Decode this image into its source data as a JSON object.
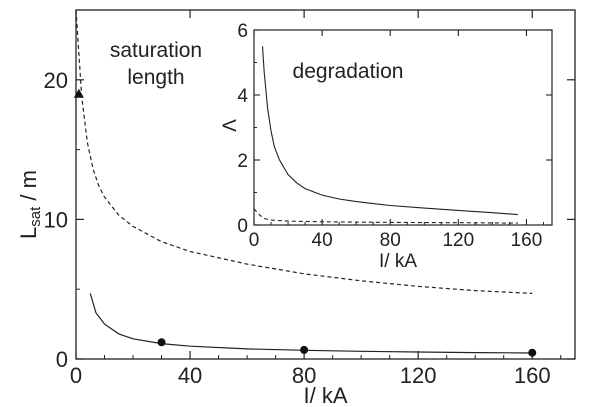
{
  "chart_data": [
    {
      "type": "line",
      "xlabel": "I/ kA",
      "ylabel_main": "L",
      "ylabel_sub": "sat",
      "ylabel_rest": " / m",
      "annotation": [
        "saturation",
        "length"
      ],
      "xlim": [
        0,
        175
      ],
      "ylim": [
        0,
        25
      ],
      "x_ticks": [
        0,
        40,
        80,
        120,
        160
      ],
      "y_ticks": [
        0,
        10,
        20
      ],
      "series": [
        {
          "style": "solid",
          "x": [
            5,
            7,
            10,
            15,
            20,
            30,
            40,
            60,
            80,
            100,
            120,
            140,
            160
          ],
          "y": [
            4.7,
            3.3,
            2.5,
            1.8,
            1.45,
            1.1,
            0.92,
            0.72,
            0.62,
            0.55,
            0.5,
            0.46,
            0.43
          ]
        },
        {
          "style": "dashed",
          "x": [
            0,
            2,
            4,
            6,
            8,
            10,
            15,
            20,
            30,
            40,
            60,
            80,
            100,
            120,
            140,
            160
          ],
          "y": [
            25,
            18.8,
            15.5,
            13.6,
            12.4,
            11.6,
            10.3,
            9.5,
            8.4,
            7.7,
            6.8,
            6.1,
            5.6,
            5.2,
            4.9,
            4.7
          ]
        }
      ],
      "points": [
        {
          "marker": "circle",
          "x": 30,
          "y": 1.2
        },
        {
          "marker": "circle",
          "x": 80,
          "y": 0.65
        },
        {
          "marker": "circle",
          "x": 160,
          "y": 0.45
        },
        {
          "marker": "triangle",
          "x": 1,
          "y": 19
        }
      ]
    },
    {
      "type": "line",
      "xlabel": "I/ kA",
      "ylabel": "Λ",
      "annotation": "degradation",
      "xlim": [
        0,
        175
      ],
      "ylim": [
        0,
        6
      ],
      "x_ticks": [
        0,
        40,
        80,
        120,
        160
      ],
      "y_ticks": [
        0,
        2,
        4,
        6
      ],
      "series": [
        {
          "style": "solid",
          "x": [
            5,
            6,
            8,
            10,
            12,
            15,
            20,
            25,
            30,
            40,
            50,
            60,
            80,
            100,
            120,
            140,
            155
          ],
          "y": [
            5.5,
            4.7,
            3.6,
            2.9,
            2.4,
            2.0,
            1.55,
            1.3,
            1.12,
            0.92,
            0.8,
            0.72,
            0.6,
            0.52,
            0.45,
            0.38,
            0.32
          ]
        },
        {
          "style": "dashed",
          "x": [
            0,
            3,
            6,
            10,
            20,
            40,
            80,
            120,
            155
          ],
          "y": [
            0.5,
            0.32,
            0.2,
            0.15,
            0.12,
            0.1,
            0.08,
            0.07,
            0.06
          ]
        }
      ]
    }
  ]
}
